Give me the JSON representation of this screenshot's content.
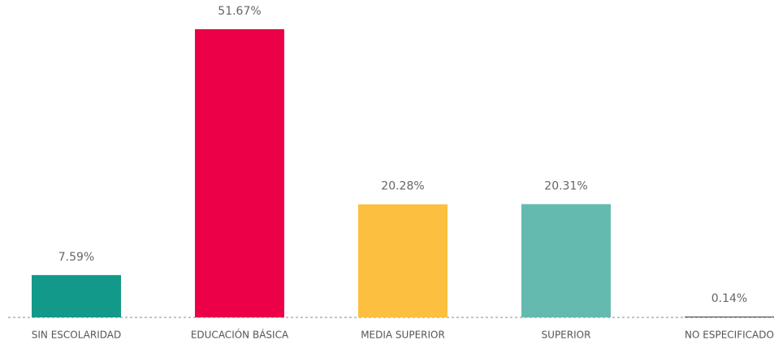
{
  "chart_data": {
    "type": "bar",
    "categories": [
      "SIN ESCOLARIDAD",
      "EDUCACIÓN BÁSICA",
      "MEDIA SUPERIOR",
      "SUPERIOR",
      "NO ESPECIFICADO"
    ],
    "values": [
      7.59,
      51.67,
      20.28,
      20.31,
      0.14
    ],
    "value_labels": [
      "7.59%",
      "51.67%",
      "20.28%",
      "20.31%",
      "0.14%"
    ],
    "colors": [
      "#12998a",
      "#ec0047",
      "#fdbf3f",
      "#65bab0",
      "#2d3a43"
    ]
  }
}
